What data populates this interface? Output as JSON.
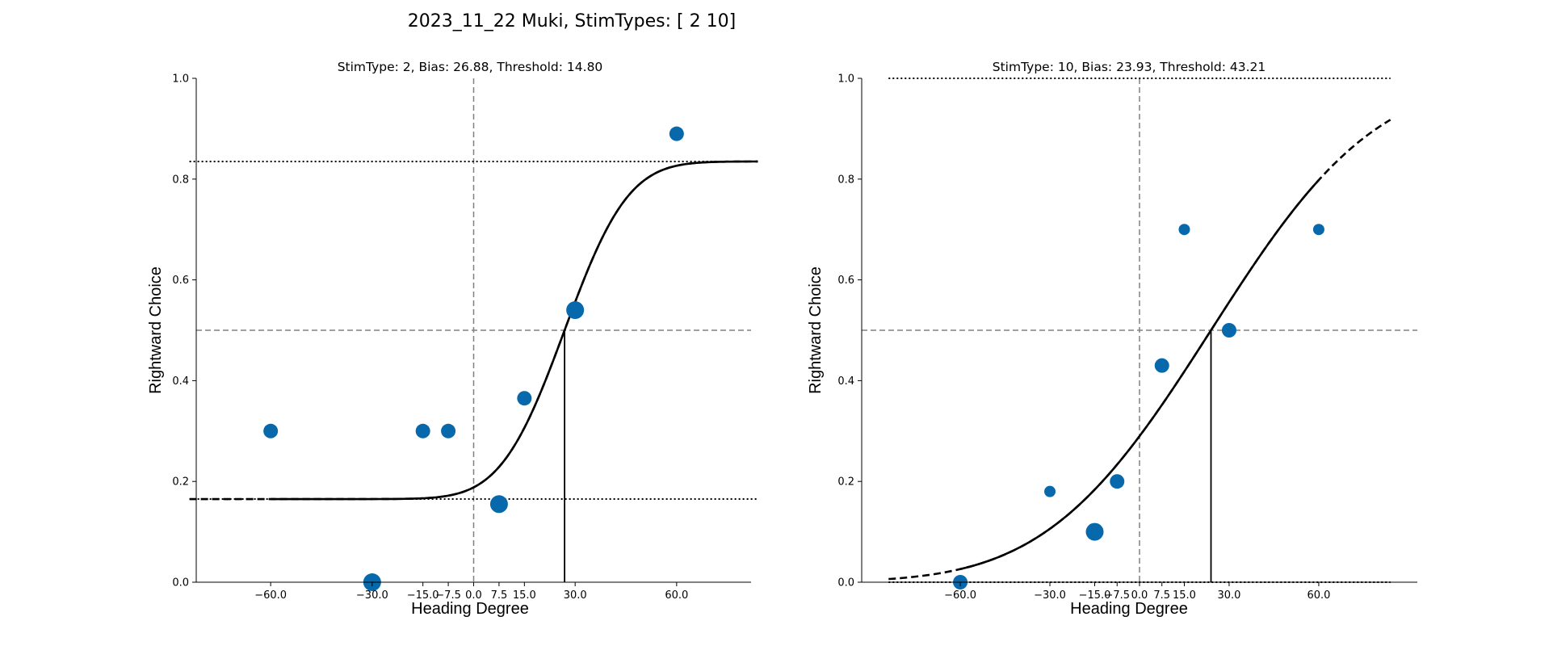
{
  "figure_title": "2023_11_22 Muki, StimTypes: [ 2 10]",
  "colors": {
    "marker": "#0868ac",
    "curve": "#000000",
    "reference": "#808080"
  },
  "chart_data": [
    {
      "type": "scatter",
      "title": "StimType: 2, Bias: 26.88, Threshold: 14.80",
      "xlabel": "Heading Degree",
      "ylabel": "Rightward Choice",
      "xlim": [
        -82,
        82
      ],
      "ylim": [
        0,
        1
      ],
      "xticks": [
        -60,
        -30,
        -15,
        -7.5,
        0,
        7.5,
        15,
        30,
        60
      ],
      "xtick_labels": [
        "−60.0",
        "−30.0",
        "−15.0",
        "−7.5",
        "0.0",
        "7.5",
        "15.0",
        "30.0",
        "60.0"
      ],
      "yticks": [
        0,
        0.2,
        0.4,
        0.6,
        0.8,
        1.0
      ],
      "ytick_labels": [
        "0.0",
        "0.2",
        "0.4",
        "0.6",
        "0.8",
        "1.0"
      ],
      "points": [
        {
          "x": -60,
          "y": 0.3,
          "size": "medium"
        },
        {
          "x": -30,
          "y": 0.0,
          "size": "large"
        },
        {
          "x": -15,
          "y": 0.3,
          "size": "medium"
        },
        {
          "x": -7.5,
          "y": 0.3,
          "size": "medium"
        },
        {
          "x": 7.5,
          "y": 0.155,
          "size": "large"
        },
        {
          "x": 15,
          "y": 0.365,
          "size": "medium"
        },
        {
          "x": 30,
          "y": 0.54,
          "size": "large"
        },
        {
          "x": 60,
          "y": 0.89,
          "size": "medium"
        }
      ],
      "fit": {
        "bias": 26.88,
        "threshold": 14.8,
        "guess_rate": 0.165,
        "lapse_rate": 0.165
      },
      "fit_x_range": [
        -84,
        84
      ],
      "fit_solid_range": [
        -60,
        84
      ],
      "reference_x": 0,
      "reference_y": 0.5,
      "asymptotes": [
        0.165,
        0.835
      ]
    },
    {
      "type": "scatter",
      "title": "StimType: 10, Bias: 23.93, Threshold: 43.21",
      "xlabel": "Heading Degree",
      "ylabel": "Rightward Choice",
      "xlim": [
        -93,
        93
      ],
      "ylim": [
        0,
        1
      ],
      "xticks": [
        -60,
        -30,
        -15,
        -7.5,
        0,
        7.5,
        15,
        30,
        60
      ],
      "xtick_labels": [
        "−60.0",
        "−30.0",
        "−15.0",
        "−7.5",
        "0.0",
        "7.5",
        "15.0",
        "30.0",
        "60.0"
      ],
      "yticks": [
        0,
        0.2,
        0.4,
        0.6,
        0.8,
        1.0
      ],
      "ytick_labels": [
        "0.0",
        "0.2",
        "0.4",
        "0.6",
        "0.8",
        "1.0"
      ],
      "points": [
        {
          "x": -60,
          "y": 0.0,
          "size": "medium"
        },
        {
          "x": -30,
          "y": 0.18,
          "size": "small"
        },
        {
          "x": -15,
          "y": 0.1,
          "size": "large"
        },
        {
          "x": -7.5,
          "y": 0.2,
          "size": "medium"
        },
        {
          "x": 7.5,
          "y": 0.43,
          "size": "medium"
        },
        {
          "x": 15,
          "y": 0.7,
          "size": "small"
        },
        {
          "x": 30,
          "y": 0.5,
          "size": "medium"
        },
        {
          "x": 60,
          "y": 0.7,
          "size": "small"
        }
      ],
      "fit": {
        "bias": 23.93,
        "threshold": 43.21,
        "guess_rate": 0.0,
        "lapse_rate": 0.0
      },
      "fit_x_range": [
        -84,
        84
      ],
      "fit_solid_range": [
        -60,
        60
      ],
      "reference_x": 0,
      "reference_y": 0.5,
      "asymptotes": [
        0.0,
        1.0
      ]
    }
  ]
}
